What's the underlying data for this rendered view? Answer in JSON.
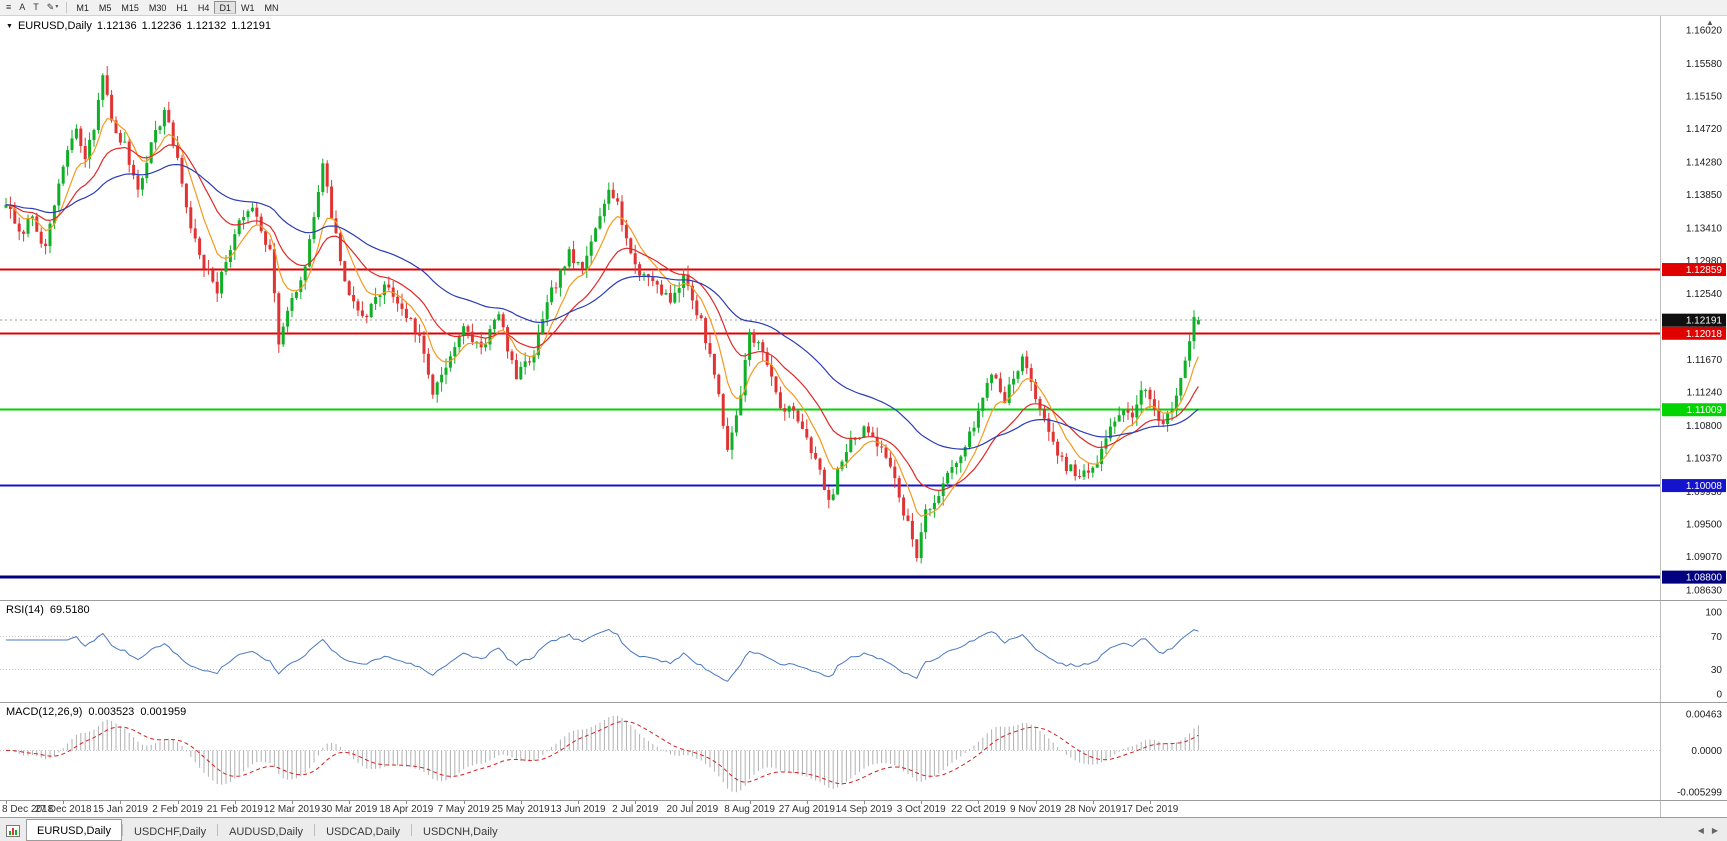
{
  "toolbar": {
    "tools": [
      {
        "name": "menu-tool",
        "glyph": "≡"
      },
      {
        "name": "cursor-tool",
        "glyph": "A"
      },
      {
        "name": "text-tool",
        "glyph": "T"
      },
      {
        "name": "draw-tool",
        "glyph": "✎",
        "dropdown": "▾"
      }
    ],
    "timeframes": [
      "M1",
      "M5",
      "M15",
      "M30",
      "H1",
      "H4",
      "D1",
      "W1",
      "MN"
    ],
    "active_timeframe": "D1"
  },
  "chart": {
    "dropdown_glyph": "▼",
    "symbol": "EURUSD,Daily",
    "open": "1.12136",
    "high": "1.12236",
    "low": "1.12132",
    "close": "1.12191",
    "scale_arrow": "▲"
  },
  "price_axis": {
    "labels": [
      "1.16020",
      "1.15580",
      "1.15150",
      "1.14720",
      "1.14280",
      "1.13850",
      "1.13410",
      "1.12980",
      "1.12540",
      "1.12110",
      "1.11670",
      "1.11240",
      "1.10800",
      "1.10370",
      "1.09930",
      "1.09500",
      "1.09070",
      "1.08630"
    ]
  },
  "levels": [
    {
      "value": "1.12859",
      "price": 1.12859,
      "color": "#e00000",
      "width": 2
    },
    {
      "value": "1.12018",
      "price": 1.12018,
      "color": "#e00000",
      "width": 2
    },
    {
      "value": "1.11009",
      "price": 1.11009,
      "color": "#00d500",
      "width": 2
    },
    {
      "value": "1.10008",
      "price": 1.10008,
      "color": "#1414cc",
      "width": 2
    },
    {
      "value": "1.08800",
      "price": 1.088,
      "color": "#000080",
      "width": 3
    }
  ],
  "current_price": {
    "value": "1.12191",
    "price": 1.12191,
    "badge_color": "#101010"
  },
  "rsi": {
    "name": "RSI(14)",
    "value": "69.5180",
    "period": 14,
    "color": "#4878c0",
    "axis": [
      "100",
      "70",
      "30",
      "0"
    ]
  },
  "macd": {
    "name": "MACD(12,26,9)",
    "value_macd": "0.003523",
    "value_signal": "0.001959",
    "fast": 12,
    "slow": 26,
    "signal": 9,
    "axis": [
      "0.00463",
      "0.0000",
      "-0.005299"
    ],
    "histogram_color": "#b0b0b0",
    "signal_color": "#d42020"
  },
  "date_axis": {
    "labels": [
      "8 Dec 2018",
      "27 Dec 2018",
      "15 Jan 2019",
      "2 Feb 2019",
      "21 Feb 2019",
      "12 Mar 2019",
      "30 Mar 2019",
      "18 Apr 2019",
      "7 May 2019",
      "25 May 2019",
      "13 Jun 2019",
      "2 Jul 2019",
      "20 Jul 2019",
      "8 Aug 2019",
      "27 Aug 2019",
      "14 Sep 2019",
      "3 Oct 2019",
      "22 Oct 2019",
      "9 Nov 2019",
      "28 Nov 2019",
      "17 Dec 2019"
    ]
  },
  "tabs": {
    "items": [
      "EURUSD,Daily",
      "USDCHF,Daily",
      "AUDUSD,Daily",
      "USDCAD,Daily",
      "USDCNH,Daily"
    ],
    "active_index": 0,
    "scroll_left": "◀",
    "scroll_right": "▶"
  },
  "chart_data": {
    "type": "candlestick",
    "symbol": "EURUSD",
    "timeframe": "Daily",
    "candle_count": 272,
    "candles_per_label": 13,
    "seed": 7,
    "noise": 0.0014,
    "wick": 0.0013,
    "bull_color": "#0faf27",
    "bear_color": "#e03434",
    "last_candle": {
      "o": 1.12136,
      "h": 1.12236,
      "l": 1.12132,
      "c": 1.12191
    },
    "price_anchors": [
      [
        0,
        1.1375
      ],
      [
        3,
        1.133
      ],
      [
        6,
        1.1358
      ],
      [
        9,
        1.131
      ],
      [
        12,
        1.14
      ],
      [
        14,
        1.1442
      ],
      [
        16,
        1.1468
      ],
      [
        18,
        1.1432
      ],
      [
        20,
        1.1472
      ],
      [
        22,
        1.1548
      ],
      [
        24,
        1.1478
      ],
      [
        27,
        1.1448
      ],
      [
        30,
        1.1392
      ],
      [
        33,
        1.1452
      ],
      [
        36,
        1.1495
      ],
      [
        39,
        1.1432
      ],
      [
        42,
        1.134
      ],
      [
        45,
        1.1292
      ],
      [
        48,
        1.1256
      ],
      [
        52,
        1.1336
      ],
      [
        56,
        1.1372
      ],
      [
        60,
        1.131
      ],
      [
        62,
        1.1192
      ],
      [
        64,
        1.1228
      ],
      [
        68,
        1.1288
      ],
      [
        72,
        1.1422
      ],
      [
        74,
        1.1356
      ],
      [
        78,
        1.1246
      ],
      [
        82,
        1.1226
      ],
      [
        86,
        1.1266
      ],
      [
        90,
        1.1236
      ],
      [
        94,
        1.1196
      ],
      [
        97,
        1.1124
      ],
      [
        100,
        1.1162
      ],
      [
        104,
        1.1206
      ],
      [
        108,
        1.1182
      ],
      [
        112,
        1.1226
      ],
      [
        116,
        1.1142
      ],
      [
        120,
        1.1176
      ],
      [
        124,
        1.1256
      ],
      [
        128,
        1.1306
      ],
      [
        131,
        1.1282
      ],
      [
        134,
        1.1342
      ],
      [
        137,
        1.1398
      ],
      [
        139,
        1.1372
      ],
      [
        143,
        1.1286
      ],
      [
        147,
        1.1272
      ],
      [
        151,
        1.1246
      ],
      [
        154,
        1.1276
      ],
      [
        158,
        1.1216
      ],
      [
        161,
        1.1152
      ],
      [
        164,
        1.1046
      ],
      [
        167,
        1.1122
      ],
      [
        169,
        1.1206
      ],
      [
        172,
        1.1176
      ],
      [
        176,
        1.1106
      ],
      [
        180,
        1.1092
      ],
      [
        184,
        1.1036
      ],
      [
        187,
        1.0976
      ],
      [
        190,
        1.1036
      ],
      [
        193,
        1.1066
      ],
      [
        196,
        1.1076
      ],
      [
        200,
        1.1042
      ],
      [
        203,
        1.0986
      ],
      [
        207,
        1.0912
      ],
      [
        209,
        1.0966
      ],
      [
        212,
        1.0986
      ],
      [
        216,
        1.1036
      ],
      [
        220,
        1.1076
      ],
      [
        224,
        1.1152
      ],
      [
        227,
        1.1116
      ],
      [
        231,
        1.1166
      ],
      [
        234,
        1.1122
      ],
      [
        237,
        1.1066
      ],
      [
        240,
        1.1032
      ],
      [
        244,
        1.1012
      ],
      [
        248,
        1.1026
      ],
      [
        251,
        1.1082
      ],
      [
        254,
        1.1102
      ],
      [
        256,
        1.1086
      ],
      [
        258,
        1.1132
      ],
      [
        260,
        1.1116
      ],
      [
        262,
        1.1082
      ],
      [
        265,
        1.1096
      ],
      [
        268,
        1.1168
      ],
      [
        270,
        1.1226
      ],
      [
        271,
        1.12191
      ]
    ],
    "ma": [
      {
        "period": 8,
        "color": "#f49a20"
      },
      {
        "period": 20,
        "color": "#e02828"
      },
      {
        "period": 50,
        "color": "#2c3cb4"
      }
    ],
    "rsi_current": 69.518,
    "macd_current": 0.003523,
    "macd_signal_current": 0.001959
  }
}
